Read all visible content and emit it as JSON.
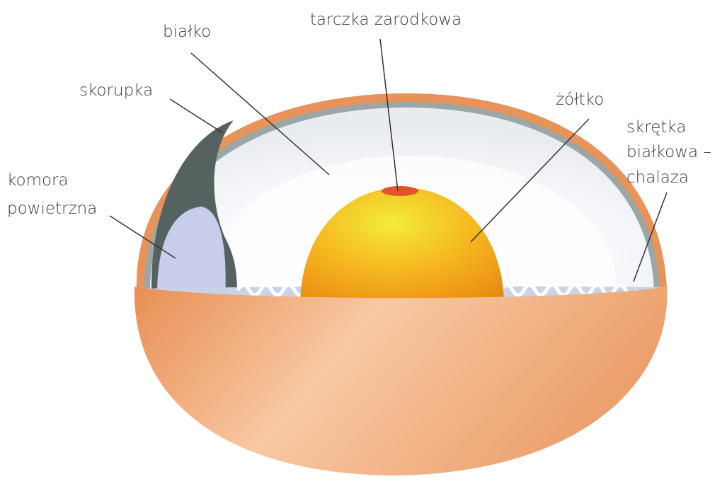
{
  "labels": {
    "albumen": "białko",
    "germinal_disc": "tarczka zarodkowa",
    "shell": "skorupka",
    "yolk": "żółtko",
    "air_cell": [
      "komora",
      "powietrzna"
    ],
    "chalaza": [
      "skrętka",
      "białkowa –",
      "chalaza"
    ]
  }
}
